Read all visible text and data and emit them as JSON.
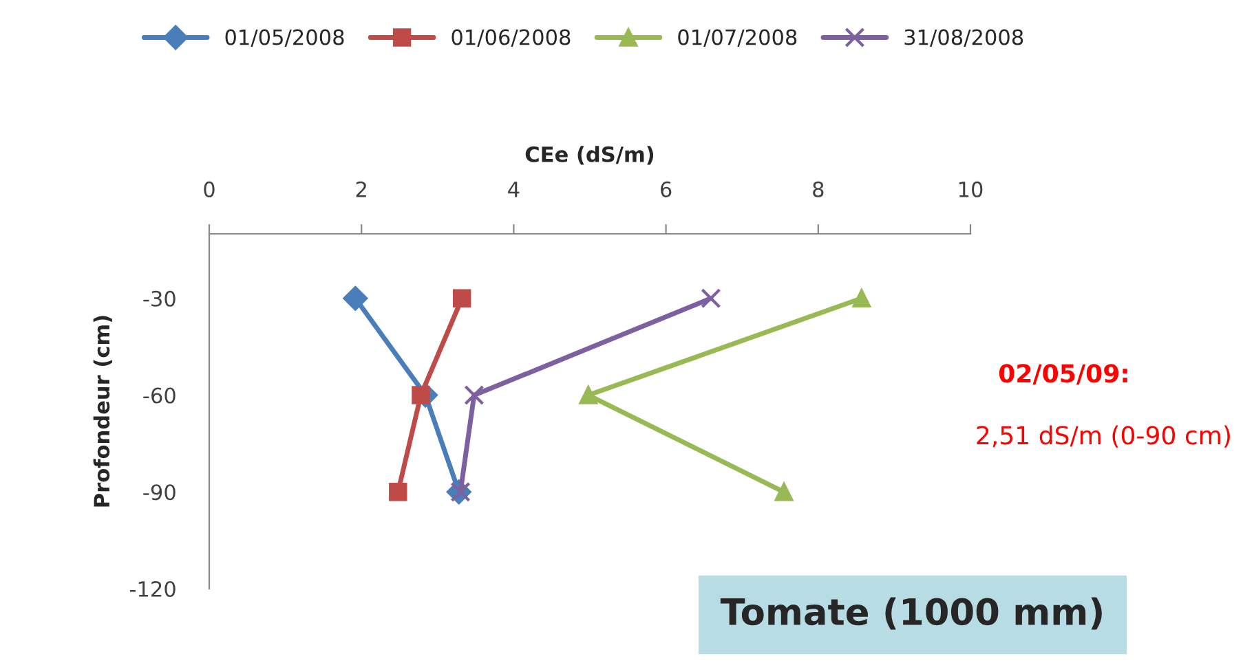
{
  "chart_data": {
    "type": "line",
    "xlabel": "CEe (dS/m)",
    "ylabel": "Profondeur (cm)",
    "xlim": [
      0,
      10
    ],
    "xticks": [
      0,
      2,
      4,
      6,
      8,
      10
    ],
    "ylim": [
      -120,
      -10
    ],
    "yticks": [
      -30,
      -60,
      -90,
      -120
    ],
    "grid": false,
    "legend": "top",
    "series": [
      {
        "name": "01/05/2008",
        "color": "#4a7ebb",
        "marker": "diamond",
        "values": [
          -30,
          -60,
          -90
        ],
        "x": [
          1.92,
          2.84,
          3.28
        ]
      },
      {
        "name": "01/06/2008",
        "color": "#be4b48",
        "marker": "square",
        "values": [
          -30,
          -60,
          -90
        ],
        "x": [
          3.32,
          2.78,
          2.48
        ]
      },
      {
        "name": "01/07/2008",
        "color": "#98b954",
        "marker": "triangle",
        "values": [
          -30,
          -60,
          -90
        ],
        "x": [
          8.57,
          4.98,
          7.55
        ]
      },
      {
        "name": "31/08/2008",
        "color": "#7d60a0",
        "marker": "cross",
        "values": [
          -30,
          -60,
          -90
        ],
        "x": [
          6.59,
          3.48,
          3.3
        ]
      }
    ],
    "annotations": [
      "02/05/09:",
      "2,51 dS/m (0-90 cm)",
      "Tomate (1000 mm)"
    ]
  }
}
